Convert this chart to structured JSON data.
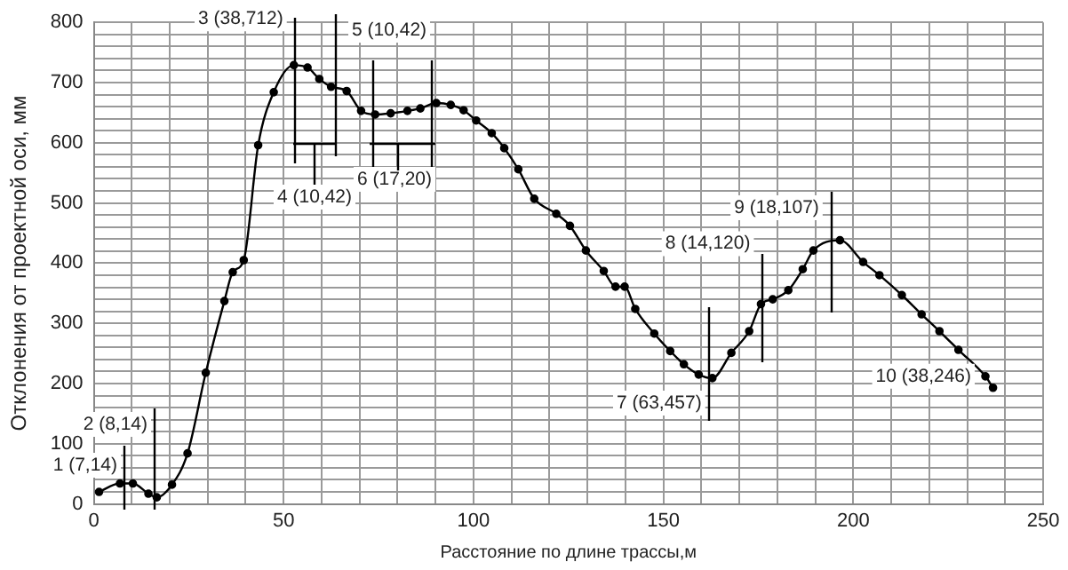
{
  "chart_data": {
    "type": "line",
    "xlabel": "Расстояние по длине трассы,м",
    "ylabel": "Отклонения от проектной оси, мм",
    "xlim": [
      0,
      250
    ],
    "ylim": [
      0,
      800
    ],
    "xticks": [
      0,
      {
        "value": 10,
        "label": null
      },
      {
        "value": 20,
        "label": null
      },
      {
        "value": 30,
        "label": null
      },
      {
        "value": 40,
        "label": null
      },
      50,
      {
        "value": 60,
        "label": null
      },
      {
        "value": 70,
        "label": null
      },
      {
        "value": 80,
        "label": null
      },
      {
        "value": 90,
        "label": null
      },
      100,
      {
        "value": 110,
        "label": null
      },
      {
        "value": 120,
        "label": null
      },
      {
        "value": 130,
        "label": null
      },
      {
        "value": 140,
        "label": null
      },
      150,
      {
        "value": 160,
        "label": null
      },
      {
        "value": 170,
        "label": null
      },
      {
        "value": 180,
        "label": null
      },
      {
        "value": 190,
        "label": null
      },
      200,
      {
        "value": 210,
        "label": null
      },
      {
        "value": 220,
        "label": null
      },
      {
        "value": 230,
        "label": null
      },
      {
        "value": 240,
        "label": null
      },
      250
    ],
    "yticks": [
      0,
      {
        "value": 20,
        "label": null
      },
      {
        "value": 40,
        "label": null
      },
      {
        "value": 60,
        "label": null
      },
      {
        "value": 80,
        "label": null
      },
      100,
      {
        "value": 120,
        "label": null
      },
      {
        "value": 140,
        "label": null
      },
      {
        "value": 160,
        "label": null
      },
      {
        "value": 180,
        "label": null
      },
      200,
      {
        "value": 220,
        "label": null
      },
      {
        "value": 240,
        "label": null
      },
      {
        "value": 260,
        "label": null
      },
      {
        "value": 280,
        "label": null
      },
      300,
      {
        "value": 320,
        "label": null
      },
      {
        "value": 340,
        "label": null
      },
      {
        "value": 360,
        "label": null
      },
      {
        "value": 380,
        "label": null
      },
      400,
      {
        "value": 420,
        "label": null
      },
      {
        "value": 440,
        "label": null
      },
      {
        "value": 460,
        "label": null
      },
      {
        "value": 480,
        "label": null
      },
      500,
      {
        "value": 520,
        "label": null
      },
      {
        "value": 540,
        "label": null
      },
      {
        "value": 560,
        "label": null
      },
      {
        "value": 580,
        "label": null
      },
      600,
      {
        "value": 620,
        "label": null
      },
      {
        "value": 640,
        "label": null
      },
      {
        "value": 660,
        "label": null
      },
      {
        "value": 680,
        "label": null
      },
      700,
      {
        "value": 720,
        "label": null
      },
      {
        "value": 740,
        "label": null
      },
      {
        "value": 760,
        "label": null
      },
      {
        "value": 780,
        "label": null
      },
      800
    ],
    "grid": true,
    "marker": "circle",
    "line_style": "solid",
    "x": [
      1.4,
      6.9,
      10.3,
      14.4,
      16.6,
      20.6,
      24.7,
      29.5,
      34.4,
      36.6,
      39.5,
      43.3,
      47.4,
      52.7,
      56.3,
      59.4,
      62.5,
      66.6,
      70.4,
      74.1,
      78.2,
      82.6,
      86,
      90.2,
      94,
      97.4,
      100.7,
      104.8,
      108.1,
      111.8,
      116,
      121.8,
      125.4,
      129.6,
      134.3,
      137.4,
      139.8,
      142.6,
      147.6,
      151.8,
      155.4,
      159.3,
      162.9,
      167.9,
      172.6,
      175.7,
      178.8,
      182.9,
      186.7,
      189.5,
      196.5,
      202.6,
      206.9,
      212.8,
      218,
      222.7,
      227.7,
      234.8,
      236.8
    ],
    "series": [
      {
        "color": "#000000",
        "values": [
          20,
          34,
          34,
          17,
          11,
          32,
          84,
          218,
          337,
          385,
          405,
          596,
          684,
          729,
          725,
          706,
          693,
          686,
          653,
          647,
          649,
          653,
          657,
          666,
          663,
          654,
          637,
          616,
          591,
          556,
          507,
          482,
          462,
          421,
          387,
          361,
          361,
          324,
          283,
          254,
          232,
          215,
          209,
          251,
          287,
          332,
          340,
          355,
          390,
          421,
          438,
          402,
          380,
          347,
          315,
          287,
          256,
          212,
          193
        ]
      }
    ],
    "annotations": [
      "1 (7,14)",
      "2 (8,14)",
      {
        "text": "3 (38,712)",
        "x": 52.7,
        "y": 729
      },
      "4 (10,42)",
      "5 (10,42)",
      "6 (17,20)",
      {
        "text": "7 (63,457)",
        "x": 162.9,
        "y": 209
      },
      {
        "text": "8 (14,120)",
        "x": 175.7,
        "y": 332
      },
      "9 (18,107)",
      {
        "text": "10 (38,246)",
        "x": 234.8,
        "y": 212
      }
    ]
  }
}
